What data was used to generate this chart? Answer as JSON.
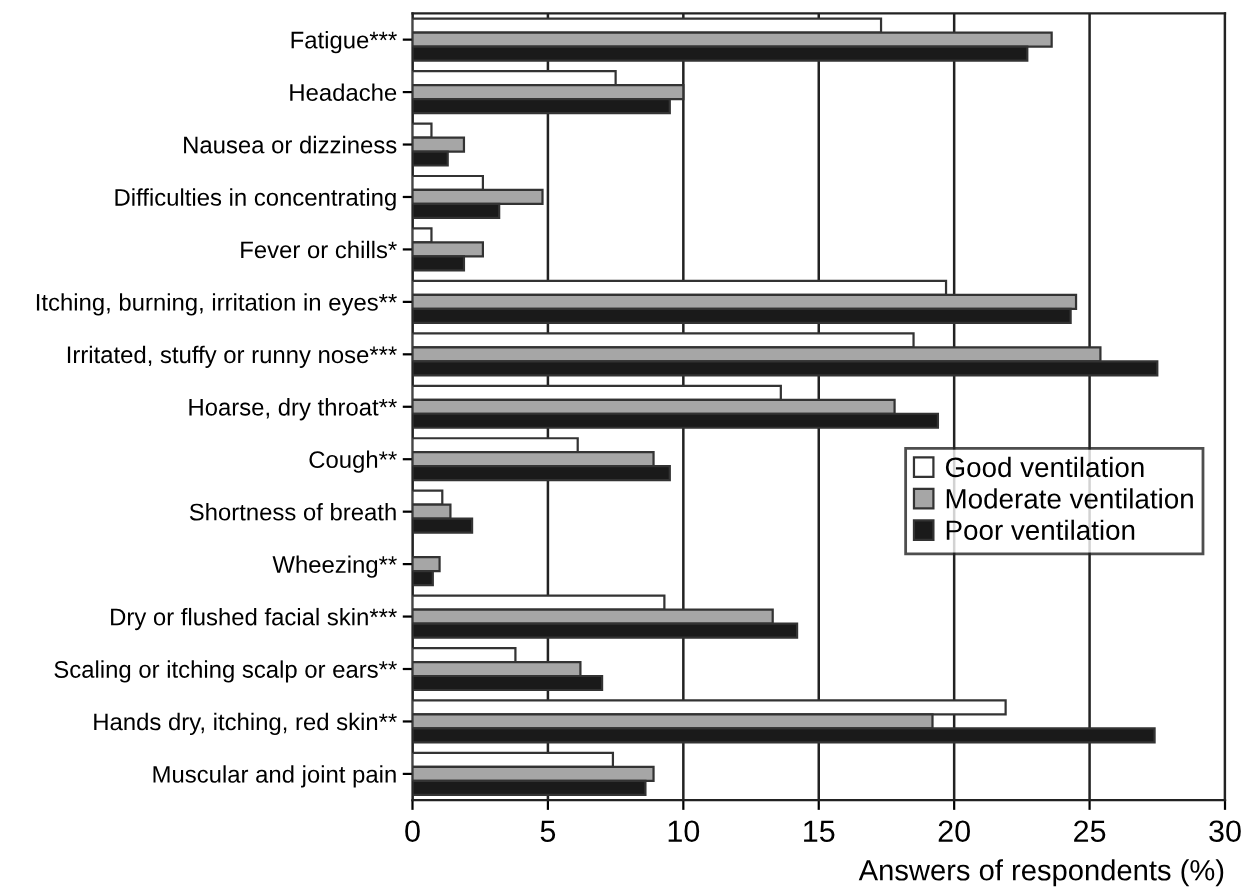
{
  "chart_data": {
    "type": "bar",
    "orientation": "horizontal",
    "xlabel": "Answers of respondents (%)",
    "categories": [
      "Fatigue***",
      "Headache",
      "Nausea or dizziness",
      "Difficulties in concentrating",
      "Fever or chills*",
      "Itching, burning, irritation in eyes**",
      "Irritated, stuffy or runny nose***",
      "Hoarse, dry throat**",
      "Cough**",
      "Shortness of breath",
      "Wheezing**",
      "Dry or flushed facial skin***",
      "Scaling or itching scalp or ears**",
      "Hands dry, itching, red skin**",
      "Muscular and joint pain"
    ],
    "series": [
      {
        "name": "Good ventilation",
        "color": "#ffffff",
        "values": [
          17.3,
          7.5,
          0.7,
          2.6,
          0.7,
          19.7,
          18.5,
          13.6,
          6.1,
          1.1,
          null,
          9.3,
          3.8,
          21.9,
          7.4
        ]
      },
      {
        "name": "Moderate ventilation",
        "color": "#a6a6a6",
        "values": [
          23.6,
          10.0,
          1.9,
          4.8,
          2.6,
          24.5,
          25.4,
          17.8,
          8.9,
          1.4,
          1.0,
          13.3,
          6.2,
          19.2,
          8.9
        ]
      },
      {
        "name": "Poor ventilation",
        "color": "#1a1a1a",
        "values": [
          22.7,
          9.5,
          1.3,
          3.2,
          1.9,
          24.3,
          27.5,
          19.4,
          9.5,
          2.2,
          0.75,
          14.2,
          7.0,
          27.4,
          8.6
        ]
      }
    ],
    "xlim": [
      0,
      30
    ],
    "xticks": [
      0,
      5,
      10,
      15,
      20,
      25,
      30
    ],
    "grid": "x",
    "legend": "right"
  }
}
